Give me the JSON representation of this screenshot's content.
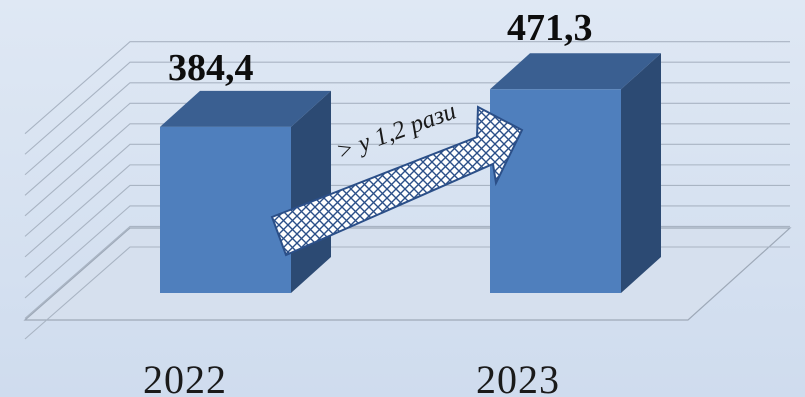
{
  "chart_data": {
    "type": "bar",
    "categories": [
      "2022",
      "2023"
    ],
    "values": [
      384.4,
      471.3
    ],
    "value_labels": [
      "384,4",
      "471,3"
    ],
    "annotation": "> у 1,2 рази",
    "ylim": [
      0,
      500
    ],
    "grid": true,
    "legend": "none",
    "colors": {
      "bar_front": "#4f7fbd",
      "bar_top": "#3a5f91",
      "bar_side": "#2c4a73",
      "gridline": "#a9b4c3",
      "arrow_fill": "#ffffff",
      "arrow_hatch": "#2b4f88"
    }
  }
}
